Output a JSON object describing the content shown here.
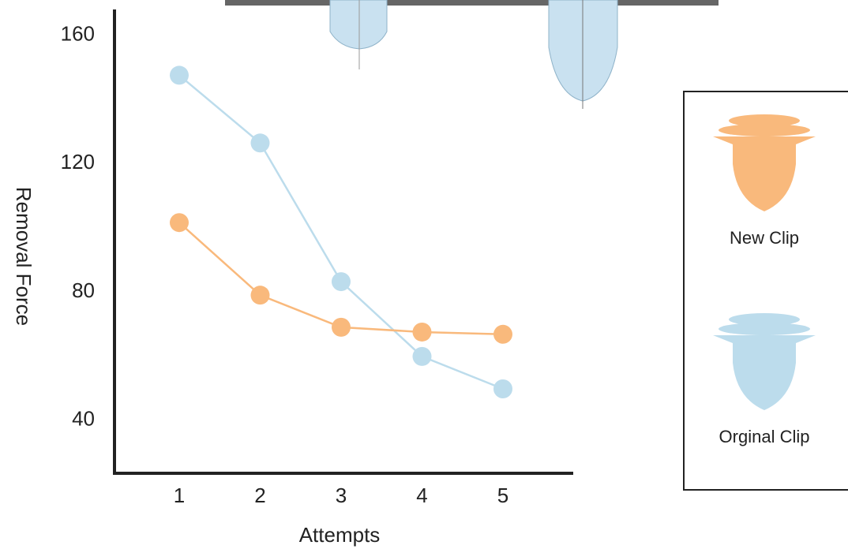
{
  "chart_data": {
    "type": "line",
    "x_label": "Attempts",
    "y_label": "Removal Force",
    "categories": [
      "1",
      "2",
      "3",
      "4",
      "5"
    ],
    "series": [
      {
        "name": "Orginal Clip",
        "color": "#bcdcec",
        "values": [
          147.5,
          126.4,
          83.2,
          59.9,
          49.8
        ]
      },
      {
        "name": "New Clip",
        "color": "#f9b97c",
        "values": [
          101.6,
          79,
          69,
          67.5,
          66.8
        ]
      }
    ],
    "ylim": [
      23.5,
      168
    ],
    "yticks": [
      40,
      80,
      120,
      160
    ]
  }
}
